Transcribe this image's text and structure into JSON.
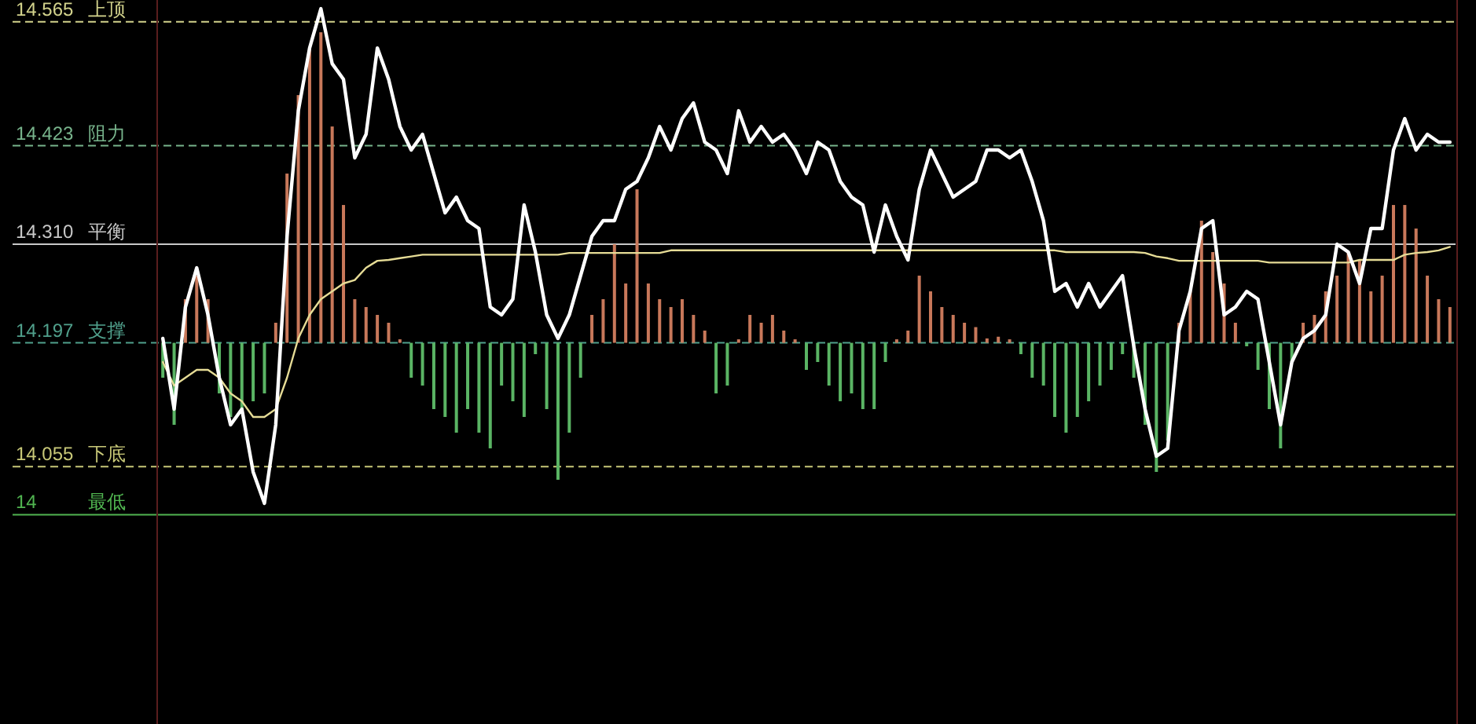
{
  "chart_data": {
    "type": "line",
    "categories": [
      null,
      null,
      null,
      null,
      null,
      null,
      null,
      null,
      null,
      null,
      null,
      null,
      null,
      null,
      null,
      null,
      null,
      null,
      null,
      null,
      null,
      null,
      null,
      null,
      null,
      null,
      null,
      null,
      null,
      null,
      null,
      null,
      null,
      null,
      null,
      null,
      null,
      null,
      null,
      null,
      null,
      null,
      null,
      null,
      null,
      null,
      null,
      null,
      null,
      null,
      null,
      null,
      null,
      null,
      null,
      null,
      null,
      null,
      null,
      null,
      null,
      null,
      null,
      null,
      null,
      null,
      null,
      null,
      null,
      null,
      null,
      null,
      null,
      null,
      null,
      null,
      null,
      null,
      null,
      null,
      null,
      null,
      null,
      null,
      null,
      null,
      null,
      null,
      null,
      null,
      null,
      null,
      null,
      null,
      null,
      null,
      null,
      null,
      null,
      null,
      null,
      null,
      null,
      null,
      null,
      null,
      null,
      null,
      null,
      null,
      null,
      null,
      null,
      null,
      null
    ],
    "ylim": [
      13.76,
      14.59
    ],
    "yticks": [
      14.565,
      14.423,
      {
        "value": 14.31,
        "label": "14.310"
      },
      14.197,
      14.055,
      14
    ],
    "tick_labels": "y",
    "ref_lines": [
      {
        "axis": "y",
        "value": 14.565,
        "label": "上顶",
        "color": "#d2d28c",
        "line_style": "dashed"
      },
      {
        "axis": "y",
        "value": 14.423,
        "label": "阻力",
        "color": "#78b48c",
        "line_style": "dashed"
      },
      {
        "axis": "y",
        "value": 14.31,
        "label": "平衡",
        "color": "#c8c8c8",
        "line_style": "solid"
      },
      {
        "axis": "y",
        "value": 14.197,
        "label": "支撑",
        "color": "#50a08c",
        "line_style": "dashed"
      },
      {
        "axis": "y",
        "value": 14.055,
        "label": "下底",
        "color": "#c8c878",
        "line_style": "dashed"
      },
      {
        "axis": "y",
        "value": 14,
        "label": "最低",
        "color": "#50b450",
        "line_style": "solid"
      }
    ],
    "series": [
      {
        "type": "bar",
        "colors": [
          "#5ab464",
          "#5ab464",
          "#c8785a",
          "#c8785a",
          "#c8785a",
          "#5ab464",
          "#5ab464",
          "#5ab464",
          "#5ab464",
          "#5ab464",
          "#c8785a",
          "#c8785a",
          "#c8785a",
          "#c8785a",
          "#c8785a",
          "#c8785a",
          "#c8785a",
          "#c8785a",
          "#c8785a",
          "#c8785a",
          "#c8785a",
          "#c8785a",
          "#5ab464",
          "#5ab464",
          "#5ab464",
          "#5ab464",
          "#5ab464",
          "#5ab464",
          "#5ab464",
          "#5ab464",
          "#5ab464",
          "#5ab464",
          "#5ab464",
          "#5ab464",
          "#5ab464",
          "#5ab464",
          "#5ab464",
          "#5ab464",
          "#c8785a",
          "#c8785a",
          "#c8785a",
          "#c8785a",
          "#c8785a",
          "#c8785a",
          "#c8785a",
          "#c8785a",
          "#c8785a",
          "#c8785a",
          "#c8785a",
          "#5ab464",
          "#5ab464",
          "#c8785a",
          "#c8785a",
          "#c8785a",
          "#c8785a",
          "#c8785a",
          "#c8785a",
          "#5ab464",
          "#5ab464",
          "#5ab464",
          "#5ab464",
          "#5ab464",
          "#5ab464",
          "#5ab464",
          "#5ab464",
          "#c8785a",
          "#c8785a",
          "#c8785a",
          "#c8785a",
          "#c8785a",
          "#c8785a",
          "#c8785a",
          "#c8785a",
          "#c8785a",
          "#c8785a",
          "#c8785a",
          "#5ab464",
          "#5ab464",
          "#5ab464",
          "#5ab464",
          "#5ab464",
          "#5ab464",
          "#5ab464",
          "#5ab464",
          "#5ab464",
          "#5ab464",
          "#5ab464",
          "#5ab464",
          "#5ab464",
          "#5ab464",
          "#c8785a",
          "#c8785a",
          "#c8785a",
          "#c8785a",
          "#c8785a",
          "#c8785a",
          "#5ab464",
          "#5ab464",
          "#5ab464",
          "#5ab464",
          "#5ab464",
          "#c8785a",
          "#c8785a",
          "#c8785a",
          "#c8785a",
          "#c8785a",
          "#c8785a",
          "#c8785a",
          "#c8785a",
          "#c8785a",
          "#c8785a",
          "#c8785a",
          "#c8785a",
          "#c8785a",
          "#c8785a"
        ],
        "base": [
          14.197,
          14.197,
          14.197,
          14.197,
          14.197,
          14.197,
          14.197,
          14.197,
          14.197,
          14.197,
          14.197,
          14.197,
          14.197,
          14.197,
          14.197,
          14.197,
          14.197,
          14.197,
          14.197,
          14.197,
          14.197,
          14.197,
          14.197,
          14.197,
          14.197,
          14.197,
          14.197,
          14.197,
          14.197,
          14.197,
          14.197,
          14.197,
          14.197,
          14.197,
          14.197,
          14.197,
          14.197,
          14.197,
          14.197,
          14.197,
          14.197,
          14.197,
          14.197,
          14.197,
          14.197,
          14.197,
          14.197,
          14.197,
          14.197,
          14.197,
          14.197,
          14.197,
          14.197,
          14.197,
          14.197,
          14.197,
          14.197,
          14.197,
          14.197,
          14.197,
          14.197,
          14.197,
          14.197,
          14.197,
          14.197,
          14.197,
          14.197,
          14.197,
          14.197,
          14.197,
          14.197,
          14.197,
          14.197,
          14.197,
          14.197,
          14.197,
          14.197,
          14.197,
          14.197,
          14.197,
          14.197,
          14.197,
          14.197,
          14.197,
          14.197,
          14.197,
          14.197,
          14.197,
          14.197,
          14.197,
          14.197,
          14.197,
          14.197,
          14.197,
          14.197,
          14.197,
          14.197,
          14.197,
          14.197,
          14.197,
          14.197,
          14.197,
          14.197,
          14.197,
          14.197,
          14.197,
          14.197,
          14.197,
          14.197,
          14.197,
          14.197,
          14.197,
          14.197,
          14.197,
          14.197
        ],
        "values": [
          -0.04,
          -0.094,
          0.05,
          0.077,
          0.05,
          -0.058,
          -0.085,
          -0.076,
          -0.067,
          -0.058,
          0.023,
          0.194,
          0.284,
          0.338,
          0.356,
          0.248,
          0.158,
          0.05,
          0.041,
          0.032,
          0.023,
          0.004,
          -0.04,
          -0.049,
          -0.076,
          -0.085,
          -0.103,
          -0.076,
          -0.103,
          -0.121,
          -0.049,
          -0.067,
          -0.085,
          -0.013,
          -0.076,
          -0.157,
          -0.103,
          -0.04,
          0.032,
          0.05,
          0.113,
          0.068,
          0.176,
          0.068,
          0.05,
          0.041,
          0.05,
          0.032,
          0.014,
          -0.058,
          -0.049,
          0.004,
          0.032,
          0.023,
          0.032,
          0.014,
          0.004,
          -0.031,
          -0.022,
          -0.049,
          -0.067,
          -0.058,
          -0.076,
          -0.076,
          -0.022,
          0.004,
          0.014,
          0.077,
          0.059,
          0.041,
          0.032,
          0.023,
          0.018,
          0.005,
          0.007,
          0.004,
          -0.013,
          -0.04,
          -0.049,
          -0.085,
          -0.103,
          -0.085,
          -0.067,
          -0.049,
          -0.031,
          -0.013,
          -0.04,
          -0.094,
          -0.148,
          -0.112,
          0.023,
          0.059,
          0.14,
          0.104,
          0.068,
          0.023,
          -0.004,
          -0.031,
          -0.076,
          -0.121,
          -0.022,
          0.023,
          0.032,
          0.059,
          0.077,
          0.104,
          0.095,
          0.059,
          0.077,
          0.158,
          0.158,
          0.131,
          0.077,
          0.05,
          0.041
        ]
      },
      {
        "type": "line",
        "color": "#e6dc96",
        "line_style": "solid",
        "values": [
          14.175,
          14.148,
          14.157,
          14.166,
          14.166,
          14.157,
          14.139,
          14.13,
          14.112,
          14.112,
          14.121,
          14.157,
          14.202,
          14.229,
          14.247,
          14.256,
          14.265,
          14.269,
          14.283,
          14.291,
          14.292,
          14.294,
          14.296,
          14.298,
          14.298,
          14.298,
          14.298,
          14.298,
          14.298,
          14.298,
          14.298,
          14.298,
          14.298,
          14.298,
          14.298,
          14.298,
          14.3,
          14.3,
          14.3,
          14.3,
          14.3,
          14.3,
          14.3,
          14.3,
          14.3,
          14.303,
          14.303,
          14.303,
          14.303,
          14.303,
          14.303,
          14.303,
          14.303,
          14.303,
          14.303,
          14.303,
          14.303,
          14.303,
          14.303,
          14.303,
          14.303,
          14.303,
          14.303,
          14.303,
          14.303,
          14.303,
          14.303,
          14.303,
          14.303,
          14.303,
          14.303,
          14.303,
          14.303,
          14.303,
          14.303,
          14.303,
          14.303,
          14.303,
          14.303,
          14.303,
          14.301,
          14.301,
          14.301,
          14.301,
          14.301,
          14.301,
          14.301,
          14.3,
          14.296,
          14.294,
          14.291,
          14.291,
          14.291,
          14.291,
          14.291,
          14.291,
          14.291,
          14.291,
          14.289,
          14.289,
          14.289,
          14.289,
          14.289,
          14.289,
          14.289,
          14.289,
          14.292,
          14.292,
          14.292,
          14.292,
          14.298,
          14.3,
          14.301,
          14.303,
          14.307
        ]
      },
      {
        "color": "#ffffff",
        "line_style": "solid",
        "values": [
          14.202,
          14.121,
          14.238,
          14.283,
          14.229,
          14.157,
          14.103,
          14.121,
          14.049,
          14.013,
          14.103,
          14.319,
          14.463,
          14.535,
          14.58,
          14.517,
          14.499,
          14.409,
          14.436,
          14.535,
          14.499,
          14.445,
          14.418,
          14.436,
          14.391,
          14.346,
          14.364,
          14.337,
          14.328,
          14.238,
          14.229,
          14.247,
          14.355,
          14.301,
          14.229,
          14.202,
          14.229,
          14.274,
          14.319,
          14.337,
          14.337,
          14.373,
          14.382,
          14.409,
          14.445,
          14.418,
          14.454,
          14.472,
          14.427,
          14.418,
          14.391,
          14.463,
          14.427,
          14.445,
          14.427,
          14.436,
          14.418,
          14.391,
          14.427,
          14.418,
          14.382,
          14.364,
          14.355,
          14.301,
          14.355,
          14.319,
          14.292,
          14.373,
          14.418,
          14.391,
          14.364,
          14.373,
          14.382,
          14.418,
          14.418,
          14.409,
          14.418,
          14.382,
          14.337,
          14.256,
          14.265,
          14.238,
          14.265,
          14.238,
          14.256,
          14.274,
          14.193,
          14.121,
          14.067,
          14.076,
          14.211,
          14.256,
          14.328,
          14.337,
          14.229,
          14.238,
          14.256,
          14.247,
          14.175,
          14.103,
          14.175,
          14.202,
          14.211,
          14.229,
          14.31,
          14.301,
          14.265,
          14.328,
          14.328,
          14.418,
          14.454,
          14.418,
          14.436,
          14.427,
          14.427
        ]
      }
    ]
  }
}
